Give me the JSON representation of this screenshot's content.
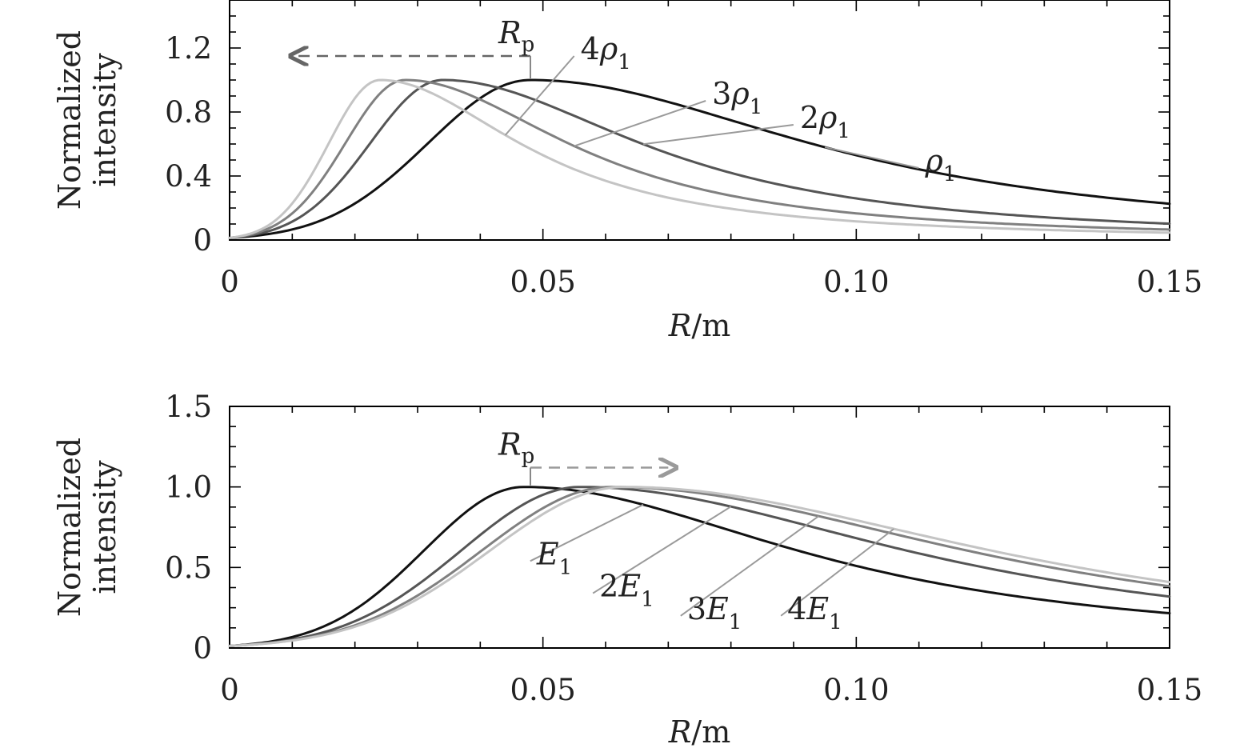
{
  "chart_data": [
    {
      "type": "line",
      "xlabel": "R/m",
      "ylabel": "Normalized intensity",
      "xlim": [
        0,
        0.15
      ],
      "ylim": [
        0,
        1.5
      ],
      "xticks": [
        0,
        0.05,
        0.1,
        0.15
      ],
      "xtick_labels": [
        "0",
        "0.05",
        "0.10",
        "0.15"
      ],
      "yticks": [
        0,
        0.4,
        0.8,
        1.2
      ],
      "ytick_labels": [
        "0",
        "0.4",
        "0.8",
        "1.2"
      ],
      "grid": false,
      "annotation": "R",
      "annotation_sub": "p",
      "arrow_direction": "left",
      "arrow_from": 0.048,
      "arrow_to": 0.011,
      "arrow_y": 1.15,
      "series": [
        {
          "name": "ρ",
          "prefix": "",
          "sub": "1",
          "color": "#111111",
          "peak": 0.048,
          "label_x": 0.111,
          "label_y": 0.43,
          "leader_x": 0.095
        },
        {
          "name": "ρ",
          "prefix": "2",
          "sub": "1",
          "color": "#555555",
          "peak": 0.034,
          "label_x": 0.091,
          "label_y": 0.7,
          "leader_x": 0.066
        },
        {
          "name": "ρ",
          "prefix": "3",
          "sub": "1",
          "color": "#808080",
          "peak": 0.028,
          "label_x": 0.077,
          "label_y": 0.85,
          "leader_x": 0.055
        },
        {
          "name": "ρ",
          "prefix": "4",
          "sub": "1",
          "color": "#c4c4c4",
          "peak": 0.024,
          "label_x": 0.056,
          "label_y": 1.13,
          "leader_x": 0.044
        }
      ]
    },
    {
      "type": "line",
      "xlabel": "R/m",
      "ylabel": "Normalized intensity",
      "xlim": [
        0,
        0.15
      ],
      "ylim": [
        0,
        1.5
      ],
      "xticks": [
        0,
        0.05,
        0.1,
        0.15
      ],
      "xtick_labels": [
        "0",
        "0.05",
        "0.10",
        "0.15"
      ],
      "yticks": [
        0,
        0.5,
        1.0,
        1.5
      ],
      "ytick_labels": [
        "0",
        "0.5",
        "1.0",
        "1.5"
      ],
      "grid": false,
      "annotation": "R",
      "annotation_sub": "p",
      "arrow_direction": "right",
      "arrow_from": 0.048,
      "arrow_to": 0.07,
      "arrow_y": 1.12,
      "series": [
        {
          "name": "E",
          "prefix": "",
          "sub": "1",
          "color": "#111111",
          "peak": 0.047,
          "label_x": 0.049,
          "label_y": 0.52,
          "leader_x": 0.066
        },
        {
          "name": "E",
          "prefix": "2",
          "sub": "1",
          "color": "#555555",
          "peak": 0.056,
          "label_x": 0.059,
          "label_y": 0.32,
          "leader_x": 0.08
        },
        {
          "name": "E",
          "prefix": "3",
          "sub": "1",
          "color": "#808080",
          "peak": 0.061,
          "label_x": 0.073,
          "label_y": 0.18,
          "leader_x": 0.094
        },
        {
          "name": "E",
          "prefix": "4",
          "sub": "1",
          "color": "#c4c4c4",
          "peak": 0.063,
          "label_x": 0.089,
          "label_y": 0.18,
          "leader_x": 0.106
        }
      ]
    }
  ]
}
